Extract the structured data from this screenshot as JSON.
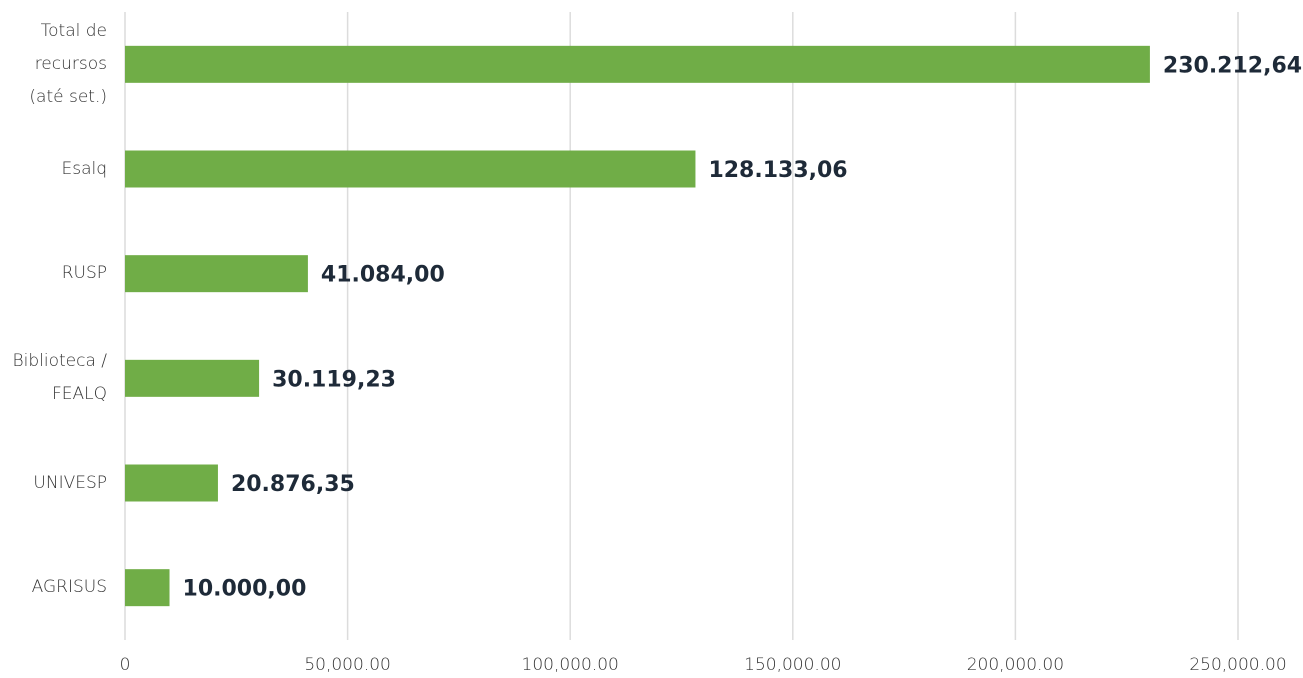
{
  "chart_data": {
    "type": "bar",
    "orientation": "horizontal",
    "categories": [
      "Total de recursos (até set.)",
      "Esalq",
      "RUSP",
      "Biblioteca / FEALQ",
      "UNIVESP",
      "AGRISUS"
    ],
    "values": [
      230212.64,
      128133.06,
      41084,
      30119.23,
      20876.35,
      10000
    ],
    "value_labels": [
      "230.212,64",
      "128.133,06",
      "41.084,00",
      "30.119,23",
      "20.876,35",
      "10.000,00"
    ],
    "color": "#70ad47",
    "xlim": [
      0,
      250000
    ],
    "xticks": [
      0,
      {
        "value": 50000,
        "label": "50,000.00"
      },
      {
        "value": 100000,
        "label": "100,000.00"
      },
      {
        "value": 150000,
        "label": "150,000.00"
      },
      {
        "value": 200000,
        "label": "200,000.00"
      },
      {
        "value": 250000,
        "label": "250,000.00"
      }
    ],
    "grid": true
  }
}
